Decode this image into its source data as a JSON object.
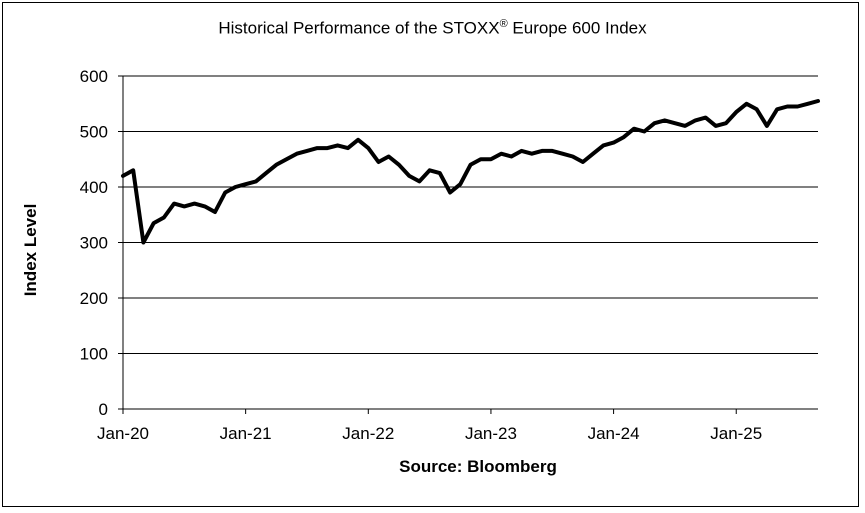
{
  "chart_data": {
    "type": "line",
    "title_main": "Historical Performance of the STOXX",
    "title_mark": "®",
    "title_rest": " Europe 600 Index",
    "xlabel": "Source: Bloomberg",
    "ylabel": "Index Level",
    "ylim": [
      0,
      600
    ],
    "yticks": [
      0,
      100,
      200,
      300,
      400,
      500,
      600
    ],
    "x_tick_labels": [
      "Jan-20",
      "Jan-21",
      "Jan-22",
      "Jan-23",
      "Jan-24",
      "Jan-25"
    ],
    "x_range": [
      "2020-01",
      "2025-09"
    ],
    "grid": "horizontal",
    "series": [
      {
        "color": "#000000",
        "x": [
          "2020-01",
          "2020-02",
          "2020-03",
          "2020-04",
          "2020-05",
          "2020-06",
          "2020-07",
          "2020-08",
          "2020-09",
          "2020-10",
          "2020-11",
          "2020-12",
          "2021-01",
          "2021-02",
          "2021-03",
          "2021-04",
          "2021-05",
          "2021-06",
          "2021-07",
          "2021-08",
          "2021-09",
          "2021-10",
          "2021-11",
          "2021-12",
          "2022-01",
          "2022-02",
          "2022-03",
          "2022-04",
          "2022-05",
          "2022-06",
          "2022-07",
          "2022-08",
          "2022-09",
          "2022-10",
          "2022-11",
          "2022-12",
          "2023-01",
          "2023-02",
          "2023-03",
          "2023-04",
          "2023-05",
          "2023-06",
          "2023-07",
          "2023-08",
          "2023-09",
          "2023-10",
          "2023-11",
          "2023-12",
          "2024-01",
          "2024-02",
          "2024-03",
          "2024-04",
          "2024-05",
          "2024-06",
          "2024-07",
          "2024-08",
          "2024-09",
          "2024-10",
          "2024-11",
          "2024-12",
          "2025-01",
          "2025-02",
          "2025-03",
          "2025-04",
          "2025-05",
          "2025-06",
          "2025-07",
          "2025-08",
          "2025-09"
        ],
        "values": [
          420,
          430,
          300,
          335,
          345,
          370,
          365,
          370,
          365,
          355,
          390,
          400,
          405,
          410,
          425,
          440,
          450,
          460,
          465,
          470,
          470,
          475,
          470,
          485,
          470,
          445,
          455,
          440,
          420,
          410,
          430,
          425,
          390,
          405,
          440,
          450,
          450,
          460,
          455,
          465,
          460,
          465,
          465,
          460,
          455,
          445,
          460,
          475,
          480,
          490,
          505,
          500,
          515,
          520,
          515,
          510,
          520,
          525,
          510,
          515,
          535,
          550,
          540,
          510,
          540,
          545,
          545,
          550,
          555
        ]
      }
    ]
  }
}
